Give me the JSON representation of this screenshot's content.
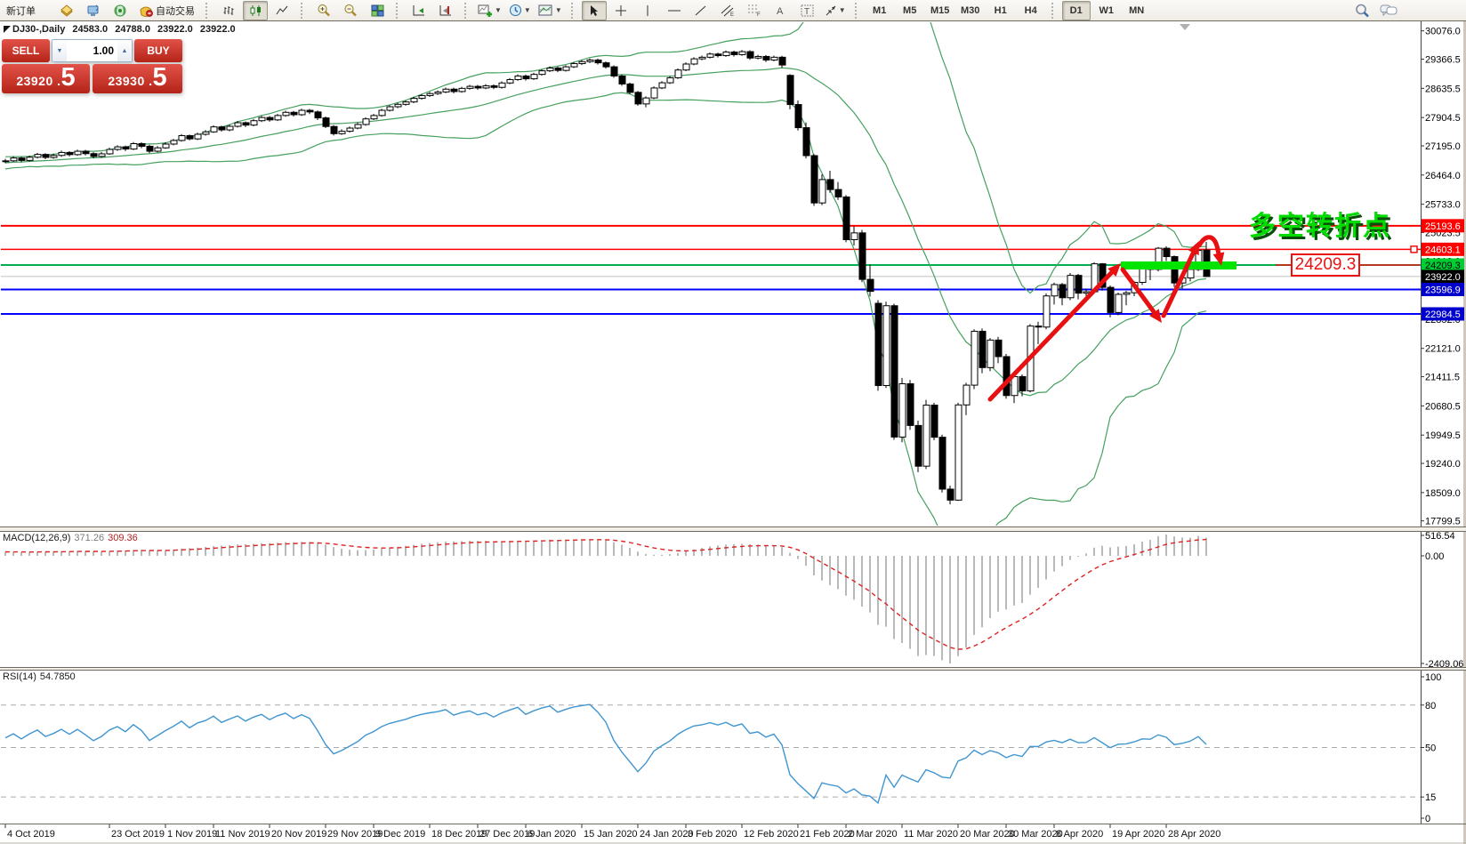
{
  "toolbar": {
    "new_order_label": "新订单",
    "autotrading_label": "自动交易",
    "icons": [
      "orders-icon",
      "terminal-icon",
      "signals-icon",
      "autotrading-icon",
      "bar-chart-icon",
      "candlestick-icon",
      "line-chart-icon",
      "zoom-in-icon",
      "zoom-out-icon",
      "tile-windows-icon",
      "auto-scroll-icon",
      "chart-shift-icon",
      "new-chart-icon",
      "period-icon",
      "template-icon",
      "cursor-icon",
      "crosshair-icon",
      "vertical-line-icon",
      "horizontal-line-icon",
      "trendline-icon",
      "channel-icon",
      "fibonacci-icon",
      "text-icon",
      "text-label-icon",
      "arrows-icon",
      "search-icon",
      "chat-icon"
    ],
    "timeframes": [
      "M1",
      "M5",
      "M15",
      "M30",
      "H1",
      "H4",
      "D1",
      "W1",
      "MN"
    ],
    "active_timeframe": "D1"
  },
  "one_click": {
    "sell_label": "SELL",
    "buy_label": "BUY",
    "volume": "1.00",
    "sell_price_small": "23920 .",
    "sell_price_big": "5",
    "buy_price_small": "23930 .",
    "buy_price_big": "5"
  },
  "chart_header": {
    "symbol_period": "DJ30-,Daily",
    "open": "24583.0",
    "high": "24788.0",
    "low": "23922.0",
    "close": "23922.0"
  },
  "annotations": {
    "turning_point_text": "多空转折点",
    "turning_point_color": "#00dc00",
    "callout_value": "24209.3",
    "callout_color": "#ee1111",
    "green_zone_price": 24209.3,
    "green_zone_color": "#00e400"
  },
  "macd_panel": {
    "label": "MACD(12,26,9)",
    "value_main": "371.26",
    "value_signal": "309.36",
    "axis_max": 516.54,
    "axis_zero": 0.0,
    "axis_min": -2409.06,
    "histogram_color": "#9b9b9b",
    "signal_color": "#d22",
    "params": {
      "fast": 12,
      "slow": 26,
      "signal": 9
    }
  },
  "rsi_panel": {
    "label": "RSI(14)",
    "value": "54.7850",
    "axis_labels": [
      100,
      80,
      50,
      15,
      0
    ],
    "dashed_levels": [
      80,
      50,
      15
    ],
    "line_color": "#4095d1",
    "period": 14
  },
  "price_axis": {
    "ticks": [
      30076.0,
      29366.5,
      28635.5,
      27904.5,
      27195.0,
      26464.0,
      25733.0,
      25023.5,
      24313.0,
      23582.0,
      22852.0,
      22121.0,
      21411.5,
      20680.5,
      19949.5,
      19240.0,
      18509.0,
      17799.5
    ],
    "tags": [
      {
        "value": 25193.6,
        "bg": "#ff0000",
        "fg": "#ffffff",
        "meaning": "red-resistance-line"
      },
      {
        "value": 24603.1,
        "bg": "#ff0000",
        "fg": "#ffffff",
        "meaning": "red-resistance-line"
      },
      {
        "value": 24209.3,
        "bg": "#00cc33",
        "fg": "#000000",
        "meaning": "green-pivot-line"
      },
      {
        "value": 23922.0,
        "bg": "#000000",
        "fg": "#ffffff",
        "meaning": "current-price"
      },
      {
        "value": 23596.9,
        "bg": "#0000cc",
        "fg": "#ffffff",
        "meaning": "blue-support-line"
      },
      {
        "value": 22984.5,
        "bg": "#0000cc",
        "fg": "#ffffff",
        "meaning": "blue-support-line"
      }
    ]
  },
  "hlines": [
    {
      "price": 25193.6,
      "color": "#ff0000",
      "width": 2
    },
    {
      "price": 24603.1,
      "color": "#ff0000",
      "width": 1.5
    },
    {
      "price": 24209.3,
      "color": "#00b050",
      "width": 2
    },
    {
      "price": 23922.0,
      "color": "#c0c0c0",
      "width": 1
    },
    {
      "price": 23596.9,
      "color": "#0000ff",
      "width": 2
    },
    {
      "price": 22984.5,
      "color": "#0000ff",
      "width": 2
    }
  ],
  "date_axis": {
    "labels": [
      {
        "text": "4 Oct 2019",
        "bar": 0
      },
      {
        "text": "23 Oct 2019",
        "bar": 13
      },
      {
        "text": "1 Nov 2019",
        "bar": 20
      },
      {
        "text": "11 Nov 2019",
        "bar": 26
      },
      {
        "text": "20 Nov 2019",
        "bar": 33
      },
      {
        "text": "29 Nov 2019",
        "bar": 40
      },
      {
        "text": "9 Dec 2019",
        "bar": 46
      },
      {
        "text": "18 Dec 2019",
        "bar": 53
      },
      {
        "text": "27 Dec 2019",
        "bar": 59
      },
      {
        "text": "6 Jan 2020",
        "bar": 65
      },
      {
        "text": "15 Jan 2020",
        "bar": 72
      },
      {
        "text": "24 Jan 2020",
        "bar": 79
      },
      {
        "text": "3 Feb 2020",
        "bar": 85
      },
      {
        "text": "12 Feb 2020",
        "bar": 92
      },
      {
        "text": "21 Feb 2020",
        "bar": 99
      },
      {
        "text": "2 Mar 2020",
        "bar": 105
      },
      {
        "text": "11 Mar 2020",
        "bar": 112
      },
      {
        "text": "20 Mar 2020",
        "bar": 119
      },
      {
        "text": "30 Mar 2020",
        "bar": 125
      },
      {
        "text": "8 Apr 2020",
        "bar": 131
      },
      {
        "text": "19 Apr 2020",
        "bar": 138
      },
      {
        "text": "28 Apr 2020",
        "bar": 145
      }
    ]
  },
  "chart_data": {
    "type": "candlestick",
    "symbol": "DJ30-",
    "period": "Daily",
    "title": "DJ30-,Daily  24583.0 24788.0 23922.0 23922.0",
    "ylim": [
      17675,
      30297
    ],
    "last_bar_ohlc": {
      "open": 24583.0,
      "high": 24788.0,
      "low": 23922.0,
      "close": 23922.0
    },
    "bollinger": {
      "period": 20,
      "deviation": 2,
      "color": "#46a05f"
    },
    "bull_color": "#ffffff",
    "bear_color": "#000000",
    "warmup_closes_estimated": [
      26500,
      26420,
      26550,
      26480,
      26610,
      26540,
      26660,
      26590,
      26700,
      26640,
      26760,
      26690,
      26800,
      26730,
      26680,
      26750,
      26820,
      26760,
      26850,
      26780,
      26880,
      26810,
      26900,
      26830,
      26780,
      26810
    ],
    "candles_ohlc_estimated": [
      [
        26810,
        26870,
        26760,
        26820
      ],
      [
        26820,
        26935,
        26795,
        26890
      ],
      [
        26890,
        26920,
        26785,
        26830
      ],
      [
        26830,
        26950,
        26800,
        26910
      ],
      [
        26910,
        27020,
        26880,
        26980
      ],
      [
        26980,
        27010,
        26860,
        26905
      ],
      [
        26905,
        27000,
        26870,
        26955
      ],
      [
        26955,
        27075,
        26920,
        27030
      ],
      [
        27030,
        27060,
        26930,
        26975
      ],
      [
        26975,
        27100,
        26950,
        27060
      ],
      [
        27060,
        27095,
        26955,
        27000
      ],
      [
        27000,
        27035,
        26880,
        26930
      ],
      [
        26930,
        27040,
        26900,
        26995
      ],
      [
        26995,
        27150,
        26970,
        27105
      ],
      [
        27105,
        27210,
        27070,
        27170
      ],
      [
        27170,
        27200,
        27065,
        27115
      ],
      [
        27115,
        27290,
        27090,
        27250
      ],
      [
        27250,
        27285,
        27135,
        27185
      ],
      [
        27185,
        27220,
        27010,
        27060
      ],
      [
        27060,
        27190,
        27030,
        27145
      ],
      [
        27145,
        27285,
        27120,
        27240
      ],
      [
        27240,
        27370,
        27210,
        27330
      ],
      [
        27330,
        27490,
        27300,
        27450
      ],
      [
        27450,
        27480,
        27330,
        27370
      ],
      [
        27370,
        27525,
        27340,
        27485
      ],
      [
        27485,
        27590,
        27450,
        27545
      ],
      [
        27545,
        27710,
        27520,
        27670
      ],
      [
        27670,
        27700,
        27550,
        27595
      ],
      [
        27595,
        27725,
        27560,
        27685
      ],
      [
        27685,
        27815,
        27655,
        27775
      ],
      [
        27775,
        27805,
        27665,
        27715
      ],
      [
        27715,
        27865,
        27685,
        27825
      ],
      [
        27825,
        27945,
        27790,
        27905
      ],
      [
        27905,
        27940,
        27800,
        27845
      ],
      [
        27845,
        27995,
        27815,
        27955
      ],
      [
        27955,
        28075,
        27925,
        28035
      ],
      [
        28035,
        28070,
        27930,
        27975
      ],
      [
        27975,
        28125,
        27945,
        28085
      ],
      [
        28085,
        28120,
        27990,
        28045
      ],
      [
        28045,
        28080,
        27840,
        27895
      ],
      [
        27895,
        27930,
        27640,
        27680
      ],
      [
        27680,
        27715,
        27455,
        27500
      ],
      [
        27500,
        27610,
        27470,
        27560
      ],
      [
        27560,
        27680,
        27530,
        27640
      ],
      [
        27640,
        27770,
        27610,
        27730
      ],
      [
        27730,
        27910,
        27700,
        27870
      ],
      [
        27870,
        27995,
        27840,
        27955
      ],
      [
        27955,
        28125,
        27925,
        28085
      ],
      [
        28085,
        28215,
        28055,
        28175
      ],
      [
        28175,
        28275,
        28140,
        28235
      ],
      [
        28235,
        28335,
        28200,
        28295
      ],
      [
        28295,
        28425,
        28265,
        28385
      ],
      [
        28385,
        28495,
        28350,
        28455
      ],
      [
        28455,
        28545,
        28420,
        28505
      ],
      [
        28505,
        28585,
        28470,
        28545
      ],
      [
        28545,
        28655,
        28515,
        28615
      ],
      [
        28615,
        28650,
        28510,
        28555
      ],
      [
        28555,
        28675,
        28525,
        28635
      ],
      [
        28635,
        28725,
        28600,
        28685
      ],
      [
        28685,
        28720,
        28600,
        28645
      ],
      [
        28645,
        28740,
        28615,
        28700
      ],
      [
        28700,
        28735,
        28615,
        28660
      ],
      [
        28660,
        28810,
        28630,
        28770
      ],
      [
        28770,
        28895,
        28740,
        28855
      ],
      [
        28855,
        28985,
        28825,
        28945
      ],
      [
        28945,
        28980,
        28830,
        28875
      ],
      [
        28875,
        29025,
        28845,
        28985
      ],
      [
        28985,
        29115,
        28955,
        29075
      ],
      [
        29075,
        29185,
        29045,
        29145
      ],
      [
        29145,
        29180,
        29040,
        29085
      ],
      [
        29085,
        29215,
        29055,
        29175
      ],
      [
        29175,
        29295,
        29145,
        29255
      ],
      [
        29255,
        29345,
        29220,
        29305
      ],
      [
        29305,
        29385,
        29270,
        29345
      ],
      [
        29345,
        29380,
        29230,
        29275
      ],
      [
        29275,
        29310,
        29130,
        29175
      ],
      [
        29175,
        29210,
        28900,
        28945
      ],
      [
        28945,
        28980,
        28700,
        28745
      ],
      [
        28745,
        28780,
        28490,
        28535
      ],
      [
        28535,
        28570,
        28200,
        28245
      ],
      [
        28245,
        28435,
        28160,
        28395
      ],
      [
        28395,
        28685,
        28365,
        28645
      ],
      [
        28645,
        28815,
        28615,
        28775
      ],
      [
        28775,
        28940,
        28745,
        28900
      ],
      [
        28900,
        29135,
        28870,
        29095
      ],
      [
        29095,
        29285,
        29065,
        29245
      ],
      [
        29245,
        29415,
        29215,
        29375
      ],
      [
        29375,
        29455,
        29340,
        29415
      ],
      [
        29415,
        29535,
        29385,
        29495
      ],
      [
        29495,
        29530,
        29410,
        29455
      ],
      [
        29455,
        29585,
        29425,
        29545
      ],
      [
        29545,
        29580,
        29430,
        29480
      ],
      [
        29480,
        29595,
        29450,
        29555
      ],
      [
        29555,
        29590,
        29350,
        29395
      ],
      [
        29395,
        29475,
        29360,
        29435
      ],
      [
        29435,
        29470,
        29295,
        29345
      ],
      [
        29345,
        29455,
        29315,
        29415
      ],
      [
        29415,
        29450,
        29150,
        29220
      ],
      [
        28960,
        28990,
        28110,
        28230
      ],
      [
        28230,
        28330,
        27580,
        27650
      ],
      [
        27650,
        27780,
        26880,
        26950
      ],
      [
        26950,
        26990,
        25690,
        25765
      ],
      [
        25765,
        26480,
        25710,
        26350
      ],
      [
        26350,
        26570,
        26020,
        26100
      ],
      [
        26100,
        26290,
        25840,
        25915
      ],
      [
        25915,
        25960,
        24780,
        24845
      ],
      [
        24845,
        25180,
        24700,
        25015
      ],
      [
        25015,
        25090,
        23780,
        23850
      ],
      [
        23850,
        24220,
        23420,
        23550
      ],
      [
        23250,
        23330,
        21060,
        21190
      ],
      [
        21190,
        23290,
        21130,
        23190
      ],
      [
        23190,
        23240,
        19830,
        19900
      ],
      [
        19900,
        21380,
        19770,
        21235
      ],
      [
        21235,
        21330,
        20080,
        20190
      ],
      [
        20190,
        20310,
        19020,
        19170
      ],
      [
        19170,
        20830,
        19100,
        20700
      ],
      [
        20700,
        20760,
        19820,
        19895
      ],
      [
        19895,
        19960,
        18510,
        18595
      ],
      [
        18595,
        18680,
        18213,
        18320
      ],
      [
        18320,
        20760,
        18300,
        20705
      ],
      [
        20705,
        21260,
        20450,
        21200
      ],
      [
        21200,
        22600,
        21100,
        22550
      ],
      [
        22550,
        22620,
        21500,
        21640
      ],
      [
        21640,
        22380,
        21550,
        22330
      ],
      [
        22330,
        22410,
        21750,
        21915
      ],
      [
        21915,
        21980,
        20860,
        20940
      ],
      [
        20940,
        21480,
        20750,
        21415
      ],
      [
        21415,
        21470,
        20920,
        21055
      ],
      [
        21055,
        22730,
        21020,
        22680
      ],
      [
        22680,
        22790,
        22230,
        22655
      ],
      [
        22655,
        23500,
        22600,
        23435
      ],
      [
        23435,
        23770,
        23220,
        23720
      ],
      [
        23720,
        23760,
        23200,
        23390
      ],
      [
        23390,
        24010,
        23330,
        23950
      ],
      [
        23950,
        23990,
        23350,
        23505
      ],
      [
        23505,
        23620,
        23280,
        23540
      ],
      [
        23540,
        24280,
        23500,
        24240
      ],
      [
        24240,
        24260,
        23570,
        23650
      ],
      [
        23650,
        23700,
        22900,
        23020
      ],
      [
        23020,
        23520,
        22950,
        23475
      ],
      [
        23475,
        23560,
        23200,
        23515
      ],
      [
        23515,
        23810,
        23430,
        23775
      ],
      [
        23775,
        24160,
        23710,
        24135
      ],
      [
        24135,
        24170,
        23830,
        24100
      ],
      [
        24100,
        24660,
        24050,
        24630
      ],
      [
        24630,
        24680,
        24310,
        24420
      ],
      [
        24420,
        24450,
        23660,
        23760
      ],
      [
        23760,
        23920,
        23620,
        23885
      ],
      [
        23885,
        24140,
        23800,
        24100
      ],
      [
        24100,
        24750,
        24060,
        24575
      ],
      [
        24583,
        24788,
        23922,
        23922
      ]
    ]
  }
}
